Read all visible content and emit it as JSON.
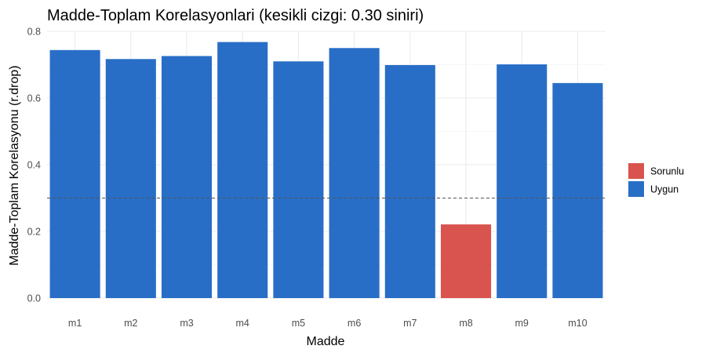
{
  "chart_data": {
    "type": "bar",
    "title": "Madde-Toplam Korelasyonlari (kesikli cizgi: 0.30 siniri)",
    "xlabel": "Madde",
    "ylabel": "Madde-Toplam Korelasyonu (r.drop)",
    "ylim": [
      0,
      0.8
    ],
    "yticks": [
      0.0,
      0.2,
      0.4,
      0.6,
      0.8
    ],
    "ytick_labels": [
      "0.0",
      "0.2",
      "0.4",
      "0.6",
      "0.8"
    ],
    "grid": true,
    "threshold": 0.3,
    "categories": [
      "m1",
      "m2",
      "m3",
      "m4",
      "m5",
      "m6",
      "m7",
      "m8",
      "m9",
      "m10"
    ],
    "values": [
      0.744,
      0.717,
      0.726,
      0.768,
      0.71,
      0.75,
      0.699,
      0.221,
      0.701,
      0.645
    ],
    "groups": [
      "Uygun",
      "Uygun",
      "Uygun",
      "Uygun",
      "Uygun",
      "Uygun",
      "Uygun",
      "Sorunlu",
      "Uygun",
      "Uygun"
    ],
    "legend": {
      "placement": "right",
      "entries": [
        {
          "label": "Sorunlu",
          "color": "#d9534f"
        },
        {
          "label": "Uygun",
          "color": "#286ec6"
        }
      ]
    }
  }
}
